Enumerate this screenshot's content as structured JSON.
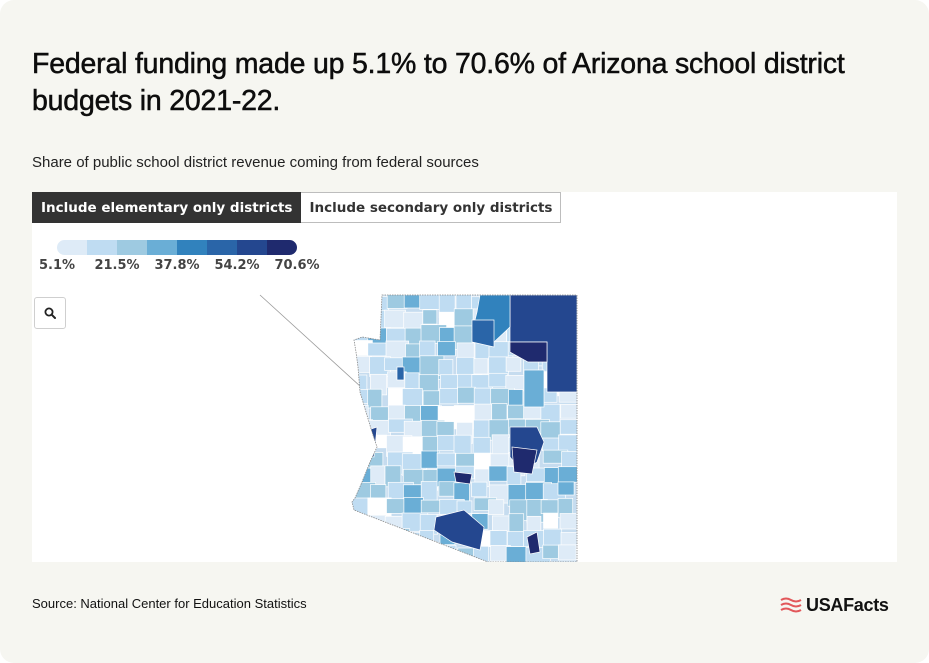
{
  "title": "Federal funding made up 5.1% to 70.6% of Arizona school district budgets in 2021-22.",
  "subtitle": "Share of public school district revenue coming from federal sources",
  "tabs": [
    {
      "label": "Include elementary only districts",
      "active": true
    },
    {
      "label": "Include secondary only districts",
      "active": false
    }
  ],
  "legend": {
    "colors": [
      "#deebf7",
      "#bfdcf2",
      "#9ecae1",
      "#6aaed6",
      "#3182bd",
      "#2a65a8",
      "#24478f",
      "#1f2a6e"
    ],
    "labels": [
      "5.1%",
      "21.5%",
      "37.8%",
      "54.2%",
      "70.6%"
    ]
  },
  "map": {
    "region": "Arizona",
    "zoom_icon": "search-icon"
  },
  "source": "Source: National Center for Education Statistics",
  "brand": {
    "name": "USAFacts",
    "icon": "flag-icon",
    "color": "#e2575a"
  }
}
